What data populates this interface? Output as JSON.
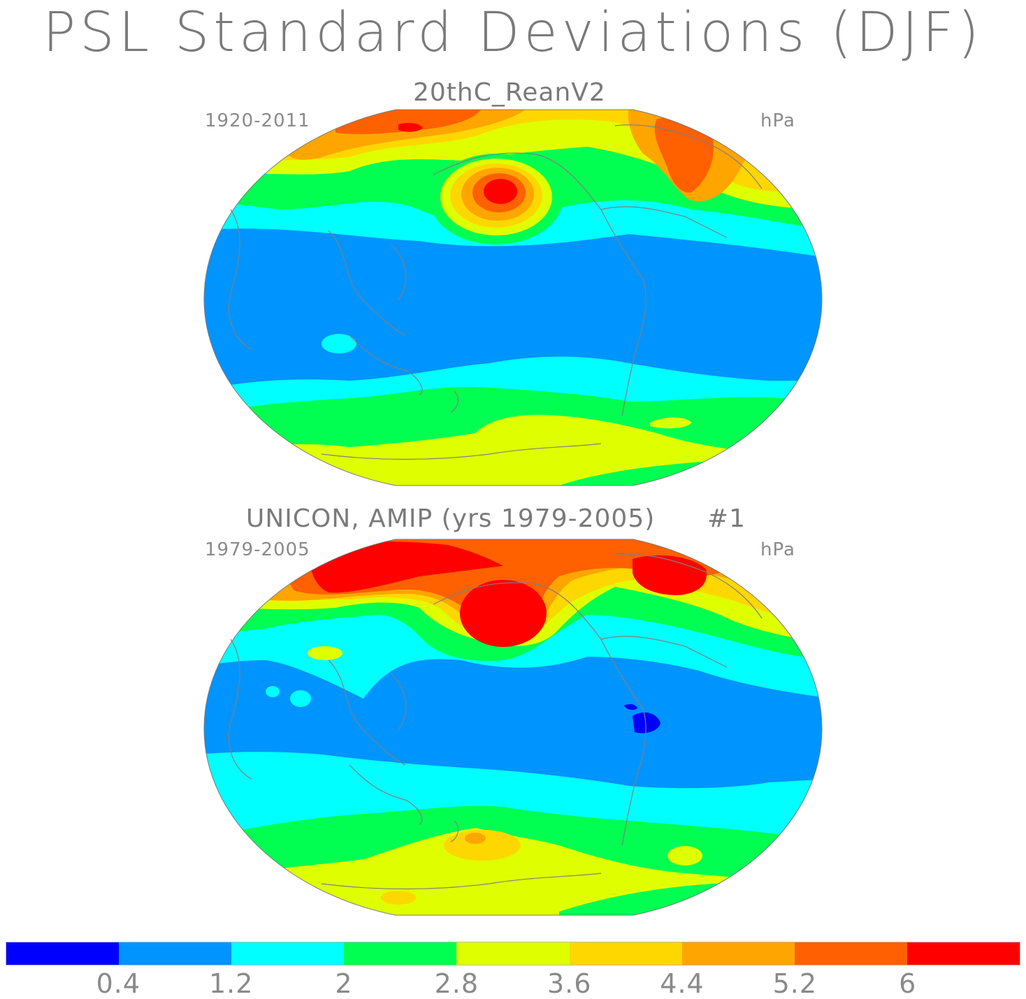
{
  "title": "PSL Standard Deviations (DJF)",
  "panels": [
    {
      "title": "20thC_ReanV2",
      "years": "1920-2011",
      "units": "hPa"
    },
    {
      "title": "UNICON, AMIP (yrs 1979-2005)      #1",
      "years": "1979-2005",
      "units": "hPa"
    }
  ],
  "colorbar": {
    "colors": [
      "#0000ff",
      "#0094ff",
      "#00ffff",
      "#00ff50",
      "#dfff00",
      "#ffd700",
      "#ffa500",
      "#ff6000",
      "#ff0000"
    ],
    "labels": [
      "0.4",
      "1.2",
      "2",
      "2.8",
      "3.6",
      "4.4",
      "5.2",
      "6"
    ]
  },
  "coastline_color": "#808080"
}
